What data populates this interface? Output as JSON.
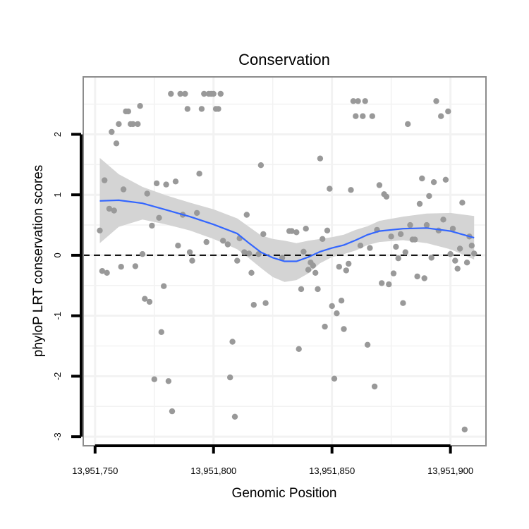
{
  "chart_data": {
    "type": "scatter",
    "title": "Conservation",
    "xlabel": "Genomic Position",
    "ylabel": "phyloP LRT conservation scores",
    "xlim": [
      13951745,
      13951915
    ],
    "ylim": [
      -3.15,
      2.95
    ],
    "x_ticks": [
      13951750,
      13951800,
      13951850,
      13951900
    ],
    "x_tick_labels": [
      "13,951,750",
      "13,951,800",
      "13,951,850",
      "13,951,900"
    ],
    "y_ticks": [
      -3,
      -2,
      -1,
      0,
      1,
      2
    ],
    "y_tick_labels": [
      "-3",
      "-2",
      "-1",
      "0",
      "1",
      "2"
    ],
    "grid": true,
    "reference_line": {
      "y": 0,
      "style": "dashed",
      "color": "#000000"
    },
    "colors": {
      "points": "#999999",
      "smooth": "#3366FF",
      "ribbon": "#d4d4d4",
      "grid": "#f2f2f2",
      "border": "#8c8c8c"
    },
    "series": [
      {
        "kind": "points",
        "values": [
          [
            13951752,
            0.41
          ],
          [
            13951753,
            -0.26
          ],
          [
            13951754,
            1.24
          ],
          [
            13951755,
            -0.29
          ],
          [
            13951756,
            0.77
          ],
          [
            13951757,
            2.04
          ],
          [
            13951758,
            0.74
          ],
          [
            13951759,
            1.85
          ],
          [
            13951760,
            2.17
          ],
          [
            13951761,
            -0.19
          ],
          [
            13951762,
            1.09
          ],
          [
            13951763,
            2.38
          ],
          [
            13951764,
            2.38
          ],
          [
            13951765,
            2.17
          ],
          [
            13951766,
            2.17
          ],
          [
            13951767,
            -0.18
          ],
          [
            13951768,
            2.17
          ],
          [
            13951769,
            2.47
          ],
          [
            13951770,
            0.02
          ],
          [
            13951771,
            -0.72
          ],
          [
            13951772,
            1.02
          ],
          [
            13951773,
            -0.77
          ],
          [
            13951774,
            0.49
          ],
          [
            13951775,
            -2.05
          ],
          [
            13951776,
            1.19
          ],
          [
            13951777,
            0.62
          ],
          [
            13951778,
            -1.27
          ],
          [
            13951779,
            -0.51
          ],
          [
            13951780,
            1.17
          ],
          [
            13951781,
            -2.08
          ],
          [
            13951782,
            2.67
          ],
          [
            13951782.5,
            -2.58
          ],
          [
            13951784,
            1.22
          ],
          [
            13951785,
            0.16
          ],
          [
            13951786,
            2.67
          ],
          [
            13951787,
            0.67
          ],
          [
            13951788,
            2.67
          ],
          [
            13951789,
            2.42
          ],
          [
            13951790,
            0.05
          ],
          [
            13951791,
            -0.09
          ],
          [
            13951793,
            0.7
          ],
          [
            13951794,
            1.35
          ],
          [
            13951795,
            2.42
          ],
          [
            13951796,
            2.67
          ],
          [
            13951797,
            0.22
          ],
          [
            13951798,
            2.67
          ],
          [
            13951799,
            2.67
          ],
          [
            13951800,
            2.67
          ],
          [
            13951801,
            2.42
          ],
          [
            13951802,
            2.42
          ],
          [
            13951803,
            2.67
          ],
          [
            13951804,
            0.24
          ],
          [
            13951806,
            0.18
          ],
          [
            13951807,
            -2.02
          ],
          [
            13951808,
            -1.43
          ],
          [
            13951809,
            -2.67
          ],
          [
            13951810,
            -0.09
          ],
          [
            13951811,
            0.28
          ],
          [
            13951813,
            0.05
          ],
          [
            13951814,
            0.67
          ],
          [
            13951815,
            0.03
          ],
          [
            13951816,
            -0.29
          ],
          [
            13951817,
            -0.82
          ],
          [
            13951819,
            0.02
          ],
          [
            13951820,
            1.49
          ],
          [
            13951821,
            0.35
          ],
          [
            13951822,
            -0.79
          ],
          [
            13951829,
            -0.04
          ],
          [
            13951832,
            0.4
          ],
          [
            13951833,
            0.4
          ],
          [
            13951835,
            0.38
          ],
          [
            13951836,
            -1.55
          ],
          [
            13951837,
            -0.56
          ],
          [
            13951838,
            0.06
          ],
          [
            13951839,
            0.44
          ],
          [
            13951840,
            -0.24
          ],
          [
            13951841,
            -0.12
          ],
          [
            13951842,
            -0.17
          ],
          [
            13951843,
            -0.29
          ],
          [
            13951844,
            -0.56
          ],
          [
            13951845,
            1.6
          ],
          [
            13951846,
            0.27
          ],
          [
            13951847,
            -1.18
          ],
          [
            13951848,
            0.41
          ],
          [
            13951849,
            1.1
          ],
          [
            13951850,
            -0.84
          ],
          [
            13951851,
            -2.04
          ],
          [
            13951852,
            -0.96
          ],
          [
            13951853,
            -0.19
          ],
          [
            13951854,
            -0.75
          ],
          [
            13951855,
            -1.22
          ],
          [
            13951856,
            -0.25
          ],
          [
            13951857,
            -0.14
          ],
          [
            13951858,
            1.08
          ],
          [
            13951859,
            2.55
          ],
          [
            13951860,
            2.3
          ],
          [
            13951861,
            2.55
          ],
          [
            13951862,
            0.16
          ],
          [
            13951863,
            2.3
          ],
          [
            13951864,
            2.55
          ],
          [
            13951865,
            -1.48
          ],
          [
            13951866,
            0.12
          ],
          [
            13951867,
            2.3
          ],
          [
            13951868,
            -2.17
          ],
          [
            13951869,
            0.42
          ],
          [
            13951870,
            1.16
          ],
          [
            13951871,
            -0.46
          ],
          [
            13951872,
            1.01
          ],
          [
            13951873,
            0.97
          ],
          [
            13951874,
            -0.48
          ],
          [
            13951875,
            0.31
          ],
          [
            13951876,
            -0.3
          ],
          [
            13951877,
            0.14
          ],
          [
            13951878,
            -0.05
          ],
          [
            13951879,
            0.35
          ],
          [
            13951880,
            -0.79
          ],
          [
            13951881,
            0.05
          ],
          [
            13951882,
            2.17
          ],
          [
            13951883,
            0.5
          ],
          [
            13951884,
            0.26
          ],
          [
            13951885,
            0.26
          ],
          [
            13951886,
            -0.35
          ],
          [
            13951887,
            0.85
          ],
          [
            13951888,
            1.27
          ],
          [
            13951889,
            -0.38
          ],
          [
            13951890,
            0.5
          ],
          [
            13951891,
            0.98
          ],
          [
            13951892,
            -0.04
          ],
          [
            13951893,
            1.21
          ],
          [
            13951894,
            2.55
          ],
          [
            13951895,
            0.41
          ],
          [
            13951896,
            2.3
          ],
          [
            13951897,
            0.59
          ],
          [
            13951898,
            1.25
          ],
          [
            13951899,
            2.38
          ],
          [
            13951900,
            0.02
          ],
          [
            13951901,
            0.44
          ],
          [
            13951902,
            -0.09
          ],
          [
            13951903,
            -0.22
          ],
          [
            13951904,
            0.11
          ],
          [
            13951905,
            0.87
          ],
          [
            13951906,
            -2.88
          ],
          [
            13951907,
            -0.12
          ],
          [
            13951908,
            0.31
          ],
          [
            13951909,
            0.16
          ],
          [
            13951910,
            0.03
          ]
        ]
      },
      {
        "kind": "smooth",
        "x": [
          13951752,
          13951760,
          13951770,
          13951780,
          13951790,
          13951800,
          13951810,
          13951815,
          13951820,
          13951825,
          13951830,
          13951835,
          13951840,
          13951845,
          13951850,
          13951855,
          13951860,
          13951865,
          13951870,
          13951880,
          13951890,
          13951900,
          13951910
        ],
        "y": [
          0.9,
          0.91,
          0.86,
          0.75,
          0.64,
          0.51,
          0.36,
          0.2,
          0.05,
          -0.04,
          -0.1,
          -0.1,
          -0.03,
          0.06,
          0.12,
          0.17,
          0.25,
          0.34,
          0.4,
          0.44,
          0.45,
          0.4,
          0.29
        ],
        "lower": [
          0.2,
          0.47,
          0.59,
          0.51,
          0.41,
          0.27,
          0.1,
          -0.05,
          -0.21,
          -0.36,
          -0.44,
          -0.41,
          -0.3,
          -0.13,
          -0.03,
          0.02,
          0.08,
          0.17,
          0.22,
          0.25,
          0.2,
          0.1,
          -0.07
        ],
        "upper": [
          1.61,
          1.34,
          1.13,
          0.99,
          0.87,
          0.76,
          0.61,
          0.47,
          0.33,
          0.27,
          0.24,
          0.2,
          0.24,
          0.27,
          0.3,
          0.34,
          0.42,
          0.48,
          0.57,
          0.64,
          0.69,
          0.7,
          0.65
        ]
      }
    ]
  }
}
